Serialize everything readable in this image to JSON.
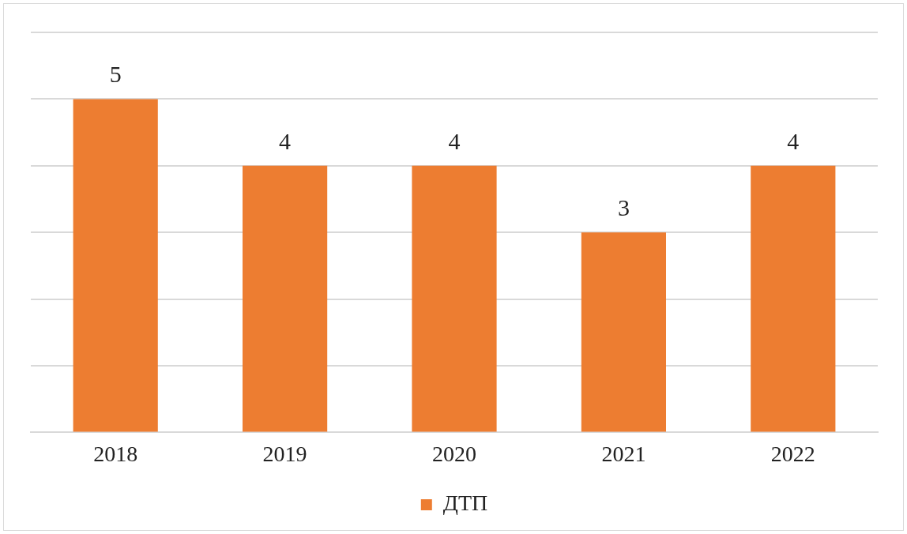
{
  "chart_data": {
    "type": "bar",
    "categories": [
      "2018",
      "2019",
      "2020",
      "2021",
      "2022"
    ],
    "series": [
      {
        "name": "ДТП",
        "color": "#ed7d31",
        "values": [
          5,
          4,
          4,
          3,
          4
        ]
      }
    ],
    "ylim": [
      0,
      6
    ],
    "yticks": [
      {
        "value": 0,
        "label": null
      },
      {
        "value": 1,
        "label": null
      },
      {
        "value": 2,
        "label": null
      },
      {
        "value": 3,
        "label": null
      },
      {
        "value": 4,
        "label": null
      },
      {
        "value": 5,
        "label": null
      },
      {
        "value": 6,
        "label": null
      }
    ],
    "tick_labels": "x",
    "grid": "y",
    "legend": "bottom",
    "data_labels": true
  }
}
